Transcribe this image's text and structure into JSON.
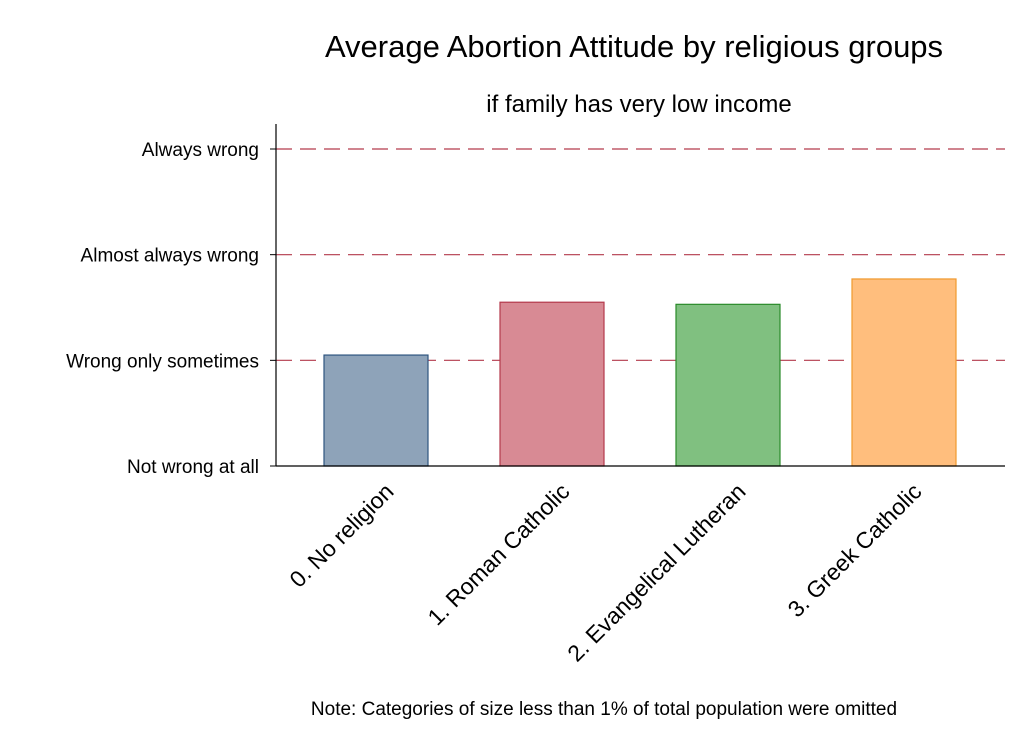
{
  "chart_data": {
    "type": "bar",
    "title": "Average Abortion Attitude by religious groups",
    "subtitle": "if family has very low income",
    "note": "Note: Categories of size less than 1% of total population were omitted",
    "categories": [
      "0. No religion",
      "1. Roman Catholic",
      "2. Evangelical Lutheran",
      "3. Greek Catholic"
    ],
    "values": [
      1.05,
      1.55,
      1.53,
      1.77
    ],
    "ylim": [
      0,
      3
    ],
    "yticks": [
      {
        "value": 0,
        "label": "Not wrong at all"
      },
      {
        "value": 1,
        "label": "Wrong only sometimes"
      },
      {
        "value": 2,
        "label": "Almost always wrong"
      },
      {
        "value": 3,
        "label": "Always wrong"
      }
    ],
    "grid": true,
    "colors": {
      "fills": [
        "#8ea3b9",
        "#d88a94",
        "#80c080",
        "#ffbe7d"
      ],
      "strokes": [
        "#2e557f",
        "#b33a4c",
        "#2a8a2a",
        "#f0992d"
      ],
      "grid": "#b33a4c",
      "axis": "#000000"
    }
  }
}
